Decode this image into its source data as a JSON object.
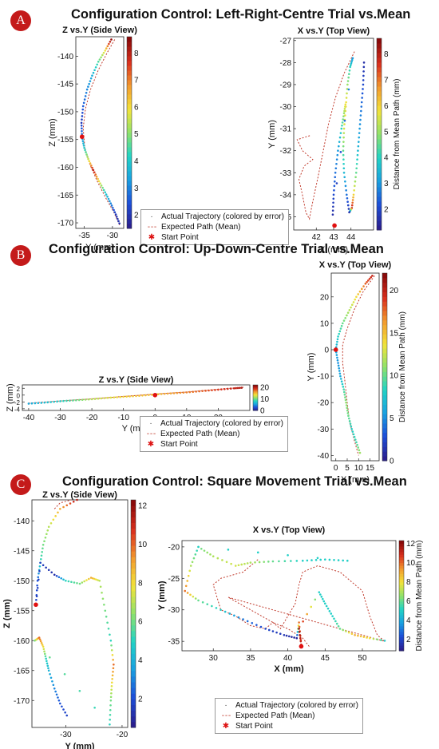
{
  "colors": {
    "expected": "#c0392b",
    "start": "#e01010",
    "colormap": [
      "#2a1f8f",
      "#1d4fd8",
      "#1aa0e0",
      "#22d3c5",
      "#8fe26b",
      "#f2e33a",
      "#f29a2e",
      "#d9301e",
      "#8a0a0a"
    ]
  },
  "panels": [
    {
      "badge": "A",
      "title": "Configuration Control: Left-Right-Centre Trial vs.Mean",
      "legend": {
        "actual": "Actual Trajectory (colored by error)",
        "expected": "Expected Path (Mean)",
        "start": "Start Point"
      }
    },
    {
      "badge": "B",
      "title": "Configuration Control: Up-Down-Centre Trial vs.Mean",
      "legend": {
        "actual": "Actual Trajectory (colored by error)",
        "expected": "Expected Path (Mean)",
        "start": "Start Point"
      }
    },
    {
      "badge": "C",
      "title": "Configuration Control: Square Movement Trial vs.Mean",
      "legend": {
        "actual": "Actual Trajectory (colored by error)",
        "expected": "Expected Path (Mean)",
        "start": "Start Point"
      }
    }
  ],
  "chart_data": [
    {
      "id": "A-side",
      "type": "scatter",
      "title": "Z vs.Y (Side View)",
      "xlabel": "Y (mm)",
      "ylabel": "Z (mm)",
      "xlim": [
        -36.5,
        -28
      ],
      "ylim": [
        -171,
        -136.5
      ],
      "xticks": [
        -35,
        -30
      ],
      "yticks": [
        -140,
        -145,
        -150,
        -155,
        -160,
        -165,
        -170
      ],
      "colorbar": {
        "min": 1.5,
        "max": 8.6,
        "ticks": [
          2,
          3,
          4,
          5,
          6,
          7,
          8
        ],
        "label": ""
      },
      "actual": [
        [
          -30.2,
          -137,
          8.5
        ],
        [
          -31.3,
          -139,
          6
        ],
        [
          -32.5,
          -141,
          4.5
        ],
        [
          -33.6,
          -143.5,
          3.5
        ],
        [
          -34.5,
          -146,
          3
        ],
        [
          -35.2,
          -149,
          2.5
        ],
        [
          -35.5,
          -152,
          2
        ],
        [
          -35.4,
          -154.5,
          3
        ],
        [
          -35,
          -156.5,
          4
        ],
        [
          -34.3,
          -158.5,
          5.5
        ],
        [
          -33.4,
          -160.5,
          8
        ],
        [
          -32.4,
          -162.5,
          6
        ],
        [
          -31.3,
          -164.5,
          4
        ],
        [
          -30.3,
          -166.5,
          3
        ],
        [
          -29.4,
          -168.5,
          2
        ],
        [
          -28.6,
          -170.5,
          1.8
        ]
      ],
      "expected": [
        [
          -29.6,
          -137
        ],
        [
          -31,
          -139.5
        ],
        [
          -32.5,
          -142.5
        ],
        [
          -33.9,
          -146
        ],
        [
          -34.8,
          -149.5
        ],
        [
          -35.2,
          -153
        ],
        [
          -34.9,
          -156.5
        ],
        [
          -34,
          -159.5
        ],
        [
          -32.7,
          -162.5
        ],
        [
          -31.2,
          -165.5
        ],
        [
          -29.8,
          -168
        ],
        [
          -28.7,
          -170.5
        ]
      ],
      "start": [
        -35.4,
        -154.5
      ]
    },
    {
      "id": "A-top",
      "type": "scatter",
      "title": "X vs.Y (Top View)",
      "xlabel": "X (mm)",
      "ylabel": "Y (mm)",
      "xlim": [
        40.7,
        45.3
      ],
      "ylim": [
        -35.6,
        -26.9
      ],
      "xticks": [
        42,
        43,
        44
      ],
      "yticks": [
        -27,
        -28,
        -29,
        -30,
        -31,
        -32,
        -33,
        -34,
        -35
      ],
      "colorbar": {
        "min": 1.2,
        "max": 8.6,
        "ticks": [
          2,
          3,
          4,
          5,
          6,
          7,
          8
        ],
        "label": "Distance from Mean Path (mm)"
      },
      "actual": [
        [
          44.75,
          -28,
          1.5
        ],
        [
          44.7,
          -29,
          2
        ],
        [
          44.6,
          -30,
          2.5
        ],
        [
          44.5,
          -31,
          3
        ],
        [
          44.4,
          -32,
          3.5
        ],
        [
          44.3,
          -33,
          4.5
        ],
        [
          44.15,
          -34,
          6
        ],
        [
          44.05,
          -34.6,
          8
        ],
        [
          43.9,
          -34.8,
          1.5
        ],
        [
          43.75,
          -34,
          2.5
        ],
        [
          43.6,
          -33,
          3.5
        ],
        [
          43.55,
          -32,
          4.5
        ],
        [
          43.6,
          -31,
          5.5
        ],
        [
          43.7,
          -30,
          6
        ],
        [
          43.8,
          -29,
          5
        ],
        [
          43.95,
          -28.2,
          4
        ],
        [
          44.1,
          -27.8,
          3
        ],
        [
          42.95,
          -34.9,
          1.5
        ],
        [
          43.0,
          -34,
          2
        ],
        [
          43.1,
          -33,
          2.5
        ],
        [
          43.25,
          -32,
          3
        ],
        [
          43.45,
          -31,
          4
        ],
        [
          43.6,
          -30.3,
          5
        ],
        [
          43.7,
          -29.8,
          6
        ]
      ],
      "expected": [
        [
          44.2,
          -27.5
        ],
        [
          43.6,
          -28.5
        ],
        [
          43.1,
          -29.6
        ],
        [
          42.7,
          -30.8
        ],
        [
          42.4,
          -32
        ],
        [
          42.1,
          -33.2
        ],
        [
          41.8,
          -34.3
        ],
        [
          41.6,
          -35.1
        ],
        [
          41.4,
          -34.8
        ],
        [
          41.2,
          -34
        ],
        [
          41,
          -33.3
        ],
        [
          41.3,
          -32.7
        ],
        [
          41.8,
          -32.4
        ],
        [
          41.2,
          -32
        ],
        [
          40.9,
          -31.5
        ],
        [
          41.7,
          -31.3
        ]
      ],
      "start": [
        43.05,
        -35.4
      ]
    },
    {
      "id": "B-side",
      "type": "scatter",
      "title": "Z vs.Y (Side View)",
      "xlabel": "Y (mm)",
      "ylabel": "Z (mm)",
      "xlim": [
        -42,
        30
      ],
      "ylim": [
        -4.5,
        3
      ],
      "xticks": [
        -40,
        -30,
        -20,
        -10,
        0,
        10,
        20
      ],
      "yticks": [
        2,
        0,
        -2,
        -4
      ],
      "ytick_labels": [
        "2",
        "0",
        "-2",
        "-4"
      ],
      "colorbar": {
        "min": 0,
        "max": 22,
        "ticks": [
          0,
          10,
          20
        ],
        "label": ""
      },
      "actual": [
        [
          -40,
          -2.5,
          6
        ],
        [
          -35,
          -2.2,
          7
        ],
        [
          -30,
          -1.8,
          8
        ],
        [
          -25,
          -1.5,
          10
        ],
        [
          -20,
          -1.2,
          12
        ],
        [
          -15,
          -0.8,
          13
        ],
        [
          -10,
          -0.5,
          14
        ],
        [
          -5,
          -0.2,
          15
        ],
        [
          0,
          0.2,
          15
        ],
        [
          5,
          0.5,
          16
        ],
        [
          10,
          0.8,
          17
        ],
        [
          15,
          1.2,
          18
        ],
        [
          20,
          1.6,
          19
        ],
        [
          25,
          2,
          20
        ],
        [
          28,
          2.2,
          21
        ]
      ],
      "expected": [
        [
          -40,
          -2.4
        ],
        [
          -30,
          -1.7
        ],
        [
          -20,
          -1.1
        ],
        [
          -10,
          -0.4
        ],
        [
          0,
          0.3
        ],
        [
          10,
          0.9
        ],
        [
          20,
          1.7
        ],
        [
          28,
          2.3
        ]
      ],
      "start": [
        0,
        0
      ]
    },
    {
      "id": "B-top",
      "type": "scatter",
      "title": "X vs.Y (Top View)",
      "xlabel": "X (mm)",
      "ylabel": "Y (mm)",
      "xlim": [
        -2,
        19
      ],
      "ylim": [
        -42,
        29
      ],
      "xticks": [
        0,
        5,
        10,
        15
      ],
      "yticks": [
        20,
        10,
        0,
        -10,
        -20,
        -30,
        -40
      ],
      "colorbar": {
        "min": 0,
        "max": 22,
        "ticks": [
          0,
          5,
          10,
          15,
          20
        ],
        "label": "Distance from Mean Path (mm)"
      },
      "actual": [
        [
          16,
          28,
          20
        ],
        [
          13,
          25,
          18
        ],
        [
          9,
          20,
          14
        ],
        [
          6,
          15,
          12
        ],
        [
          3,
          10,
          10
        ],
        [
          1,
          5,
          8
        ],
        [
          0,
          0,
          6
        ],
        [
          1,
          -5,
          5
        ],
        [
          2,
          -10,
          6
        ],
        [
          3.5,
          -15,
          9
        ],
        [
          4.5,
          -20,
          11
        ],
        [
          5.5,
          -25,
          10
        ],
        [
          7,
          -30,
          8
        ],
        [
          9,
          -35,
          9
        ],
        [
          11,
          -40,
          12
        ]
      ],
      "expected": [
        [
          17,
          28
        ],
        [
          12,
          22
        ],
        [
          8,
          15
        ],
        [
          5,
          8
        ],
        [
          3,
          2
        ],
        [
          3,
          -5
        ],
        [
          4,
          -12
        ],
        [
          5,
          -20
        ],
        [
          6,
          -27
        ],
        [
          8,
          -34
        ],
        [
          10,
          -40
        ]
      ],
      "start": [
        0,
        0
      ]
    },
    {
      "id": "C-side",
      "type": "scatter",
      "title": "Z vs.Y (Side View)",
      "xlabel": "Y (mm)",
      "ylabel": "Z (mm)",
      "xlim": [
        -36,
        -19
      ],
      "ylim": [
        -174.5,
        -136.5
      ],
      "xticks": [
        -30,
        -20
      ],
      "yticks": [
        -140,
        -145,
        -150,
        -155,
        -160,
        -165,
        -170
      ],
      "colorbar": {
        "min": 0.5,
        "max": 12.3,
        "ticks": [
          2,
          4,
          6,
          8,
          10,
          12
        ],
        "label": ""
      },
      "actual": [
        [
          -28,
          -136.5,
          11.5
        ],
        [
          -31,
          -138,
          9
        ],
        [
          -33,
          -141,
          7
        ],
        [
          -34,
          -144,
          6
        ],
        [
          -34.5,
          -147,
          5
        ],
        [
          -35,
          -150,
          2
        ],
        [
          -35.3,
          -154,
          1.5
        ],
        [
          -34.5,
          -147,
          1.5
        ],
        [
          -32,
          -149,
          1
        ],
        [
          -30,
          -150,
          5
        ],
        [
          -27.5,
          -150.5,
          6
        ],
        [
          -25.5,
          -149.5,
          9
        ],
        [
          -24,
          -150,
          7
        ],
        [
          -23,
          -155,
          6
        ],
        [
          -22,
          -160,
          5
        ],
        [
          -21.5,
          -164,
          10
        ],
        [
          -21.8,
          -167,
          8
        ],
        [
          -22,
          -170,
          6
        ],
        [
          -22.2,
          -174,
          5
        ],
        [
          -35.5,
          -160,
          6
        ],
        [
          -34.7,
          -159.5,
          10
        ],
        [
          -34,
          -161,
          8
        ],
        [
          -33.5,
          -163,
          5
        ],
        [
          -33,
          -165,
          4
        ],
        [
          -32,
          -168,
          3
        ],
        [
          -31,
          -170.5,
          2
        ],
        [
          -29.5,
          -173,
          1.5
        ]
      ],
      "expected": [
        [
          -32,
          -138
        ],
        [
          -31,
          -137
        ],
        [
          -29,
          -136.5
        ]
      ],
      "start": [
        -35.3,
        -154
      ]
    },
    {
      "id": "C-top",
      "type": "scatter",
      "title": "X vs.Y (Top View)",
      "xlabel": "X (mm)",
      "ylabel": "Y (mm)",
      "xlim": [
        25.8,
        54.5
      ],
      "ylim": [
        -36.5,
        -19
      ],
      "xticks": [
        30,
        35,
        40,
        45,
        50
      ],
      "yticks": [
        -20,
        -25,
        -30,
        -35
      ],
      "colorbar": {
        "min": 0.8,
        "max": 12.3,
        "ticks": [
          2,
          4,
          6,
          8,
          10,
          12
        ],
        "label": "Distance from Mean Path (mm)"
      },
      "actual": [
        [
          28,
          -20,
          6
        ],
        [
          30,
          -21.5,
          7
        ],
        [
          33,
          -23,
          7.5
        ],
        [
          35,
          -22.5,
          7
        ],
        [
          38,
          -22.3,
          6
        ],
        [
          42,
          -22.2,
          5
        ],
        [
          45,
          -22,
          5
        ],
        [
          48,
          -22.2,
          5
        ],
        [
          28,
          -20,
          5
        ],
        [
          27,
          -23,
          7
        ],
        [
          26.2,
          -27,
          10
        ],
        [
          28,
          -28.5,
          6
        ],
        [
          31,
          -30,
          5
        ],
        [
          34,
          -31.5,
          3
        ],
        [
          37,
          -33,
          2
        ],
        [
          39.5,
          -34,
          1.5
        ],
        [
          41.2,
          -34.5,
          1
        ],
        [
          41.5,
          -32,
          10
        ],
        [
          41.8,
          -35.5,
          11
        ],
        [
          41.5,
          -33,
          12
        ],
        [
          44.2,
          -27.2,
          5
        ],
        [
          45,
          -29,
          5
        ],
        [
          46,
          -31,
          5
        ],
        [
          47,
          -33,
          6
        ],
        [
          49,
          -34,
          9
        ],
        [
          51,
          -34.5,
          8
        ],
        [
          53.5,
          -35,
          4
        ]
      ],
      "expected": [
        [
          36,
          -22
        ],
        [
          34,
          -24
        ],
        [
          31,
          -25
        ],
        [
          30,
          -26
        ],
        [
          30.5,
          -28
        ],
        [
          31,
          -30
        ],
        [
          33,
          -31
        ],
        [
          35,
          -32.5
        ],
        [
          37,
          -33
        ],
        [
          38,
          -32
        ],
        [
          39,
          -33
        ],
        [
          40,
          -31
        ],
        [
          41,
          -29
        ],
        [
          41.5,
          -26
        ],
        [
          42,
          -24
        ],
        [
          44,
          -23
        ],
        [
          47,
          -24
        ],
        [
          50,
          -27
        ],
        [
          51,
          -31
        ],
        [
          52,
          -34
        ],
        [
          53,
          -35
        ],
        [
          32,
          -28
        ],
        [
          35,
          -30
        ],
        [
          38,
          -32
        ],
        [
          40,
          -33
        ],
        [
          42,
          -34.5
        ],
        [
          43,
          -36
        ]
      ],
      "start": [
        41.8,
        -35.8
      ]
    }
  ]
}
